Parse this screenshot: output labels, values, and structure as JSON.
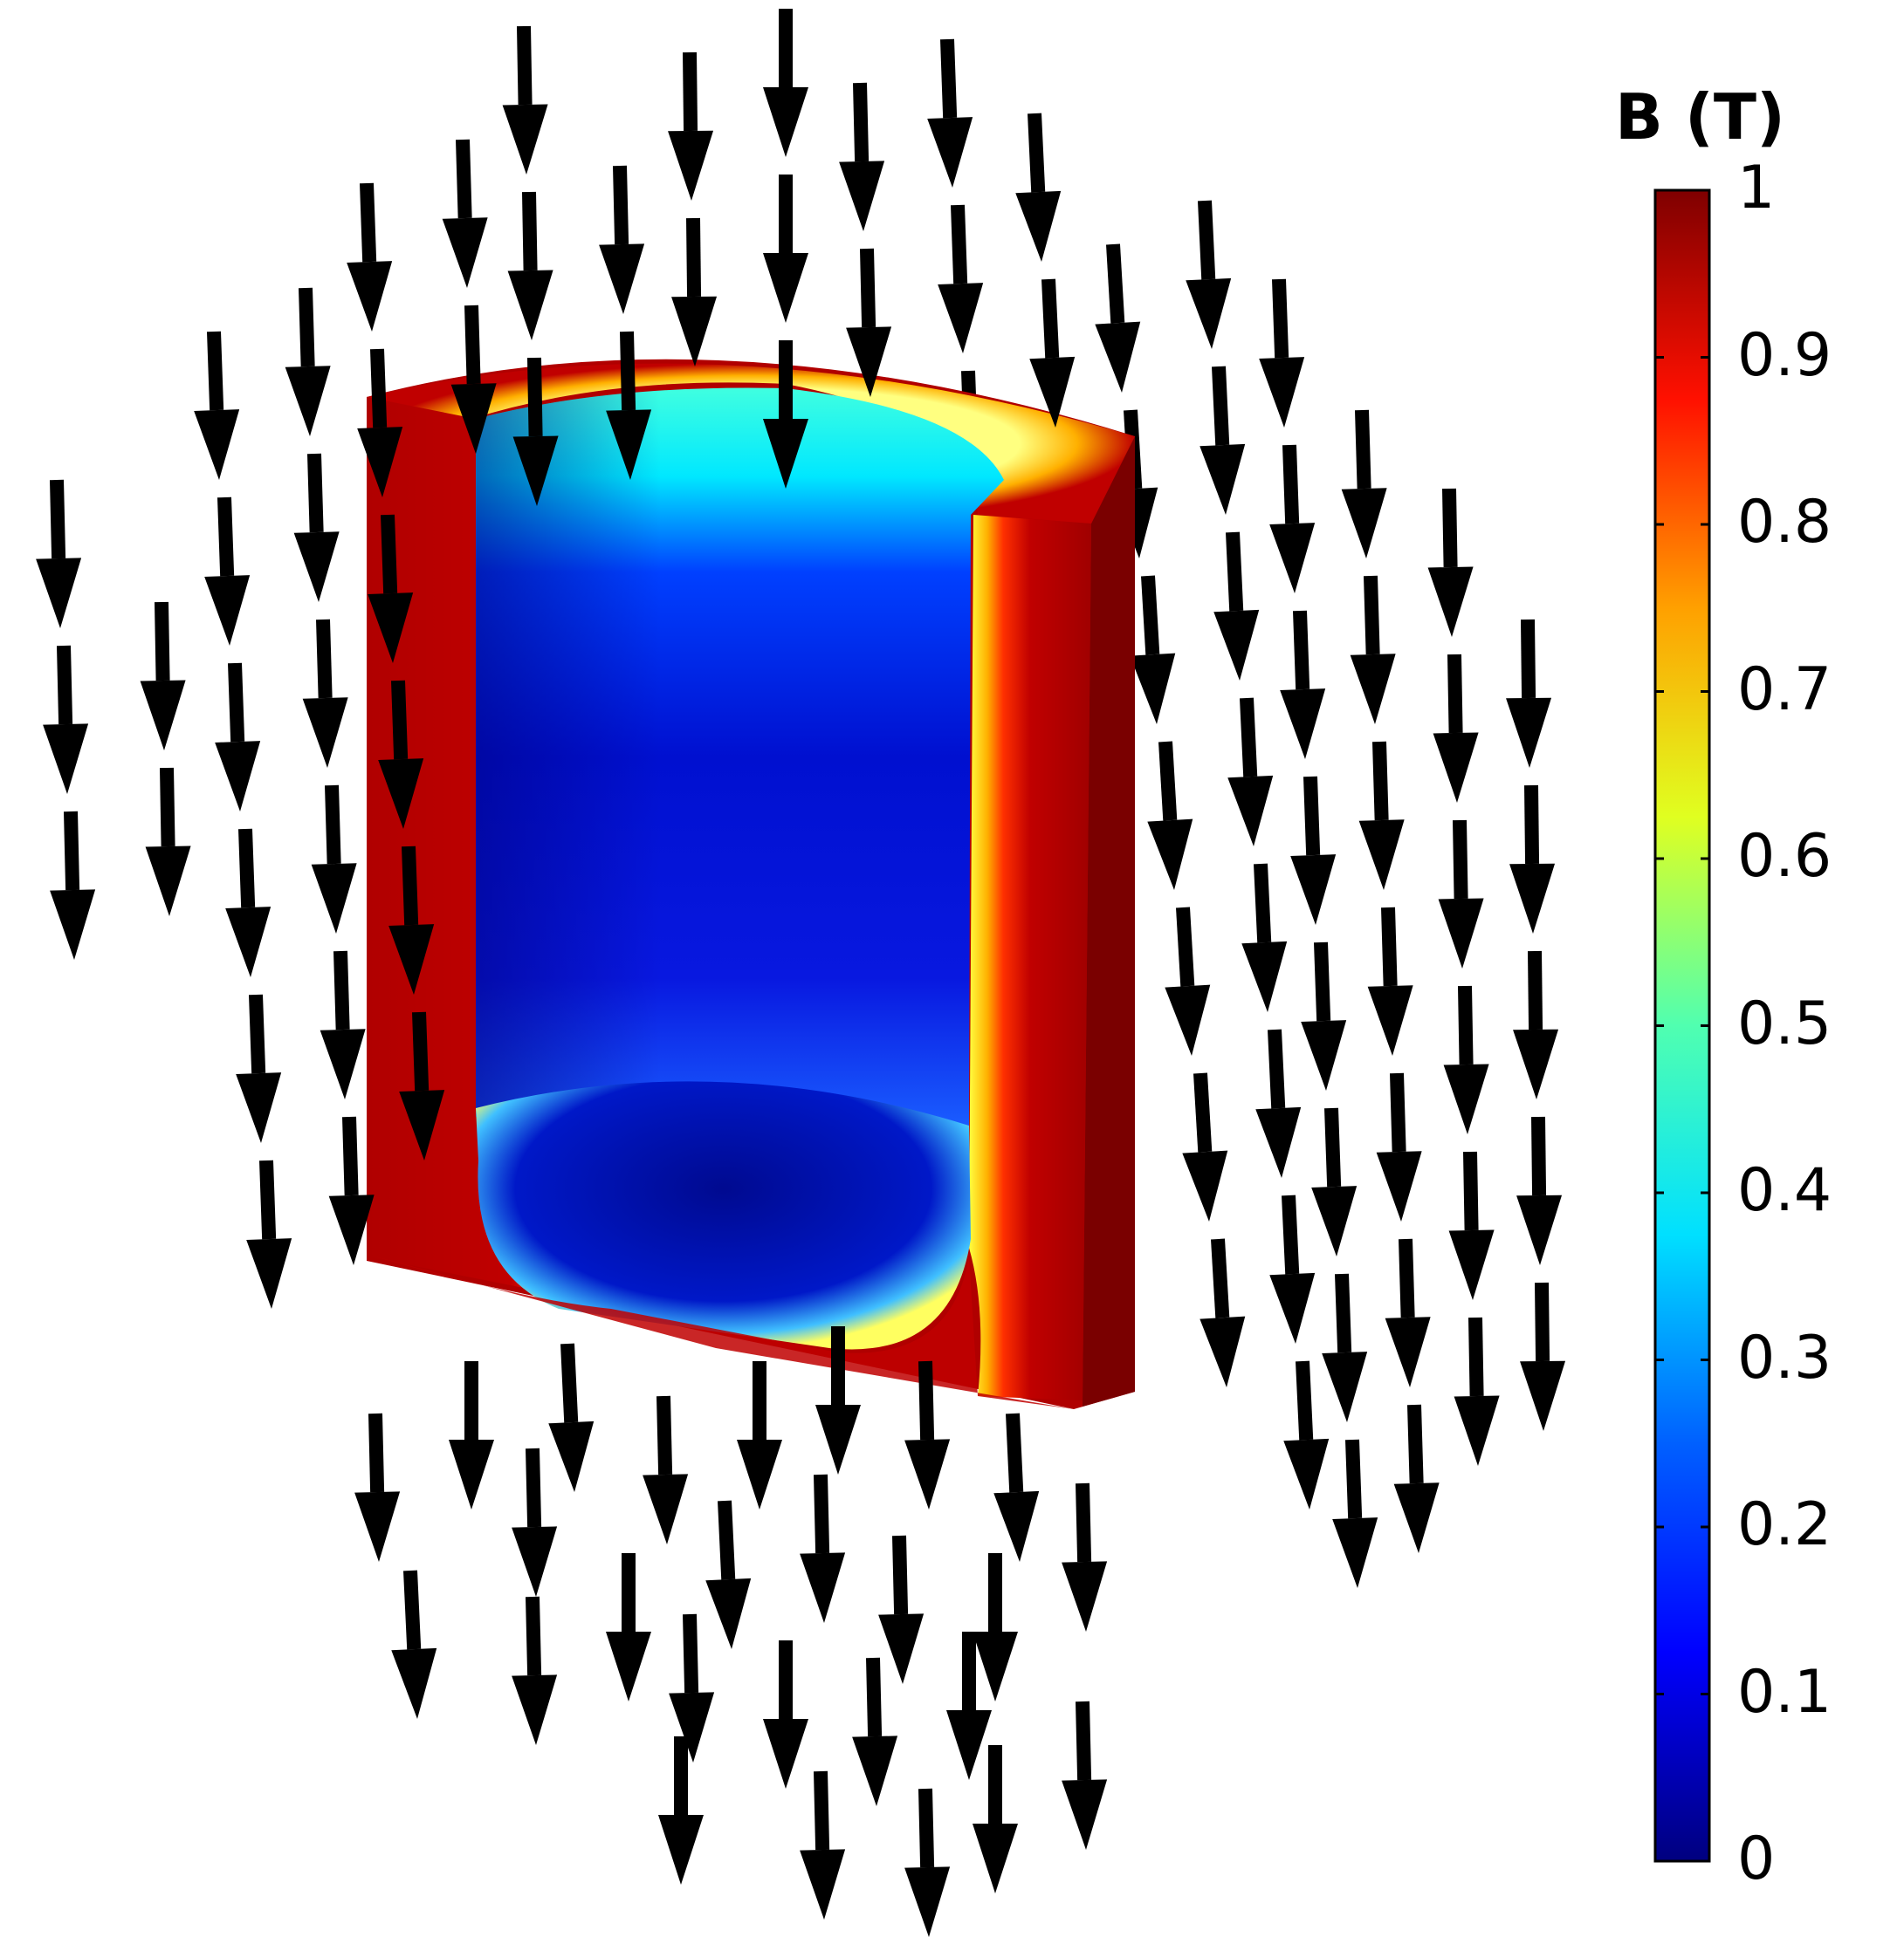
{
  "colorbar": {
    "title": "B (T)",
    "min": 0,
    "max": 1,
    "ticks": [
      "0",
      "0.1",
      "0.2",
      "0.3",
      "0.4",
      "0.5",
      "0.6",
      "0.7",
      "0.8",
      "0.9",
      "1"
    ],
    "colormap": [
      "#00007f",
      "#0000ff",
      "#007fff",
      "#00ffff",
      "#7fff7f",
      "#ffff00",
      "#ff7f00",
      "#ff0000",
      "#7f0000"
    ]
  },
  "scene": {
    "object": "cylindrical shield cutaway",
    "shell_field_color": "#a00000",
    "interior_field_color": "#0010c0",
    "arrow_color": "#000000",
    "arrow_direction": "down"
  }
}
